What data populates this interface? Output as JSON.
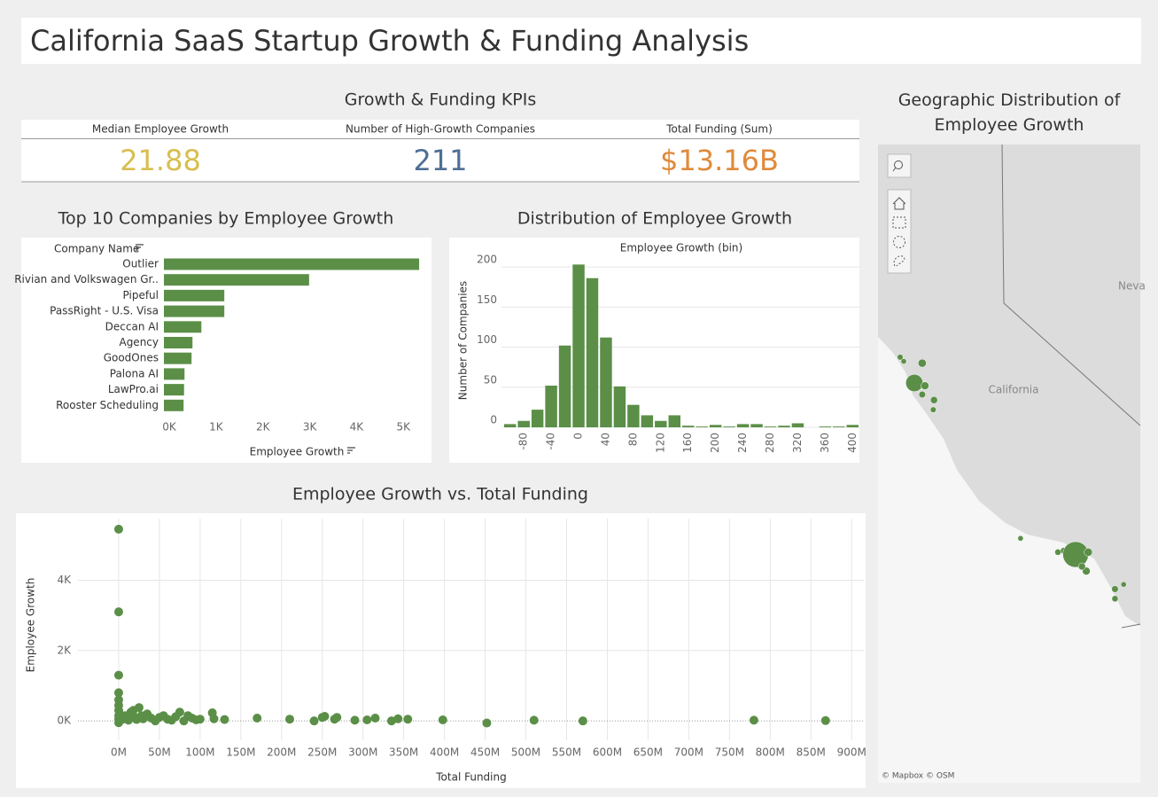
{
  "title": "California SaaS Startup Growth & Funding Analysis",
  "kpis": {
    "title": "Growth & Funding KPIs",
    "items": [
      {
        "label": "Median Employee Growth",
        "value": 21.88,
        "color": "#d8bf4e"
      },
      {
        "label": "Number of High-Growth Companies",
        "value": 211,
        "color": "#4e6f94"
      },
      {
        "label": "Total Funding (Sum)",
        "value": {
          "value": 13160000000,
          "label": "$13.16B"
        },
        "color": "#e08a3a"
      }
    ]
  },
  "chart_data": [
    {
      "type": "hbar",
      "title": "Top 10 Companies by Employee Growth",
      "y_label": "Company Name",
      "x_label": "Employee Growth",
      "color": "#5b8f47",
      "categories": [
        "Outlier",
        "Rivian and Volkswagen Gr..",
        "Pipeful",
        "PassRight - U.S. Visa",
        "Deccan AI",
        "Agency",
        "GoodOnes",
        "Palona AI",
        "LawPro.ai",
        "Rooster Scheduling"
      ],
      "values": [
        5450,
        3100,
        1290,
        1290,
        800,
        610,
        590,
        440,
        430,
        420
      ],
      "xlim": [
        0,
        5600
      ],
      "xticks": [
        {
          "value": 0,
          "label": "0K"
        },
        {
          "value": 1000,
          "label": "1K"
        },
        {
          "value": 2000,
          "label": "2K"
        },
        {
          "value": 3000,
          "label": "3K"
        },
        {
          "value": 4000,
          "label": "4K"
        },
        {
          "value": 5000,
          "label": "5K"
        }
      ]
    },
    {
      "type": "histogram",
      "title": "Distribution of Employee Growth",
      "x_label": "Employee Growth (bin)",
      "y_label": "Number of Companies",
      "color": "#5b8f47",
      "grid": true,
      "bins": [
        -100,
        -80,
        -60,
        -40,
        -20,
        0,
        20,
        40,
        60,
        80,
        100,
        120,
        140,
        160,
        180,
        200,
        220,
        240,
        260,
        280,
        300,
        320,
        340,
        360,
        380,
        400,
        420
      ],
      "values": [
        4,
        8,
        22,
        52,
        102,
        203,
        186,
        112,
        51,
        28,
        15,
        8,
        15,
        2,
        1,
        3,
        1,
        4,
        4,
        1,
        2,
        5,
        0,
        1,
        1,
        3
      ],
      "xlim": [
        -100,
        420
      ],
      "xticks": [
        -80,
        -40,
        0,
        40,
        80,
        120,
        160,
        200,
        240,
        280,
        320,
        360,
        400
      ],
      "ylim": [
        0,
        220
      ],
      "yticks": [
        0,
        50,
        100,
        150,
        200
      ]
    },
    {
      "type": "scatter",
      "title": "Employee Growth vs. Total Funding",
      "x_label": "Total Funding",
      "y_label": "Employee Growth",
      "color": "#5b8f47",
      "grid": true,
      "x": [
        0,
        0,
        0,
        0,
        0,
        0,
        0,
        0,
        0,
        0,
        1000000,
        2000000,
        5000000,
        8000000,
        10000000,
        12000000,
        15000000,
        18000000,
        20000000,
        22000000,
        25000000,
        28000000,
        30000000,
        35000000,
        40000000,
        45000000,
        50000000,
        55000000,
        60000000,
        65000000,
        70000000,
        75000000,
        80000000,
        85000000,
        90000000,
        95000000,
        100000000,
        115000000,
        117000000,
        130000000,
        170000000,
        210000000,
        240000000,
        250000000,
        253000000,
        265000000,
        268000000,
        290000000,
        305000000,
        315000000,
        335000000,
        343000000,
        355000000,
        398000000,
        452000000,
        510000000,
        570000000,
        780000000,
        868000000
      ],
      "values": [
        5450,
        3100,
        1300,
        800,
        600,
        440,
        300,
        150,
        50,
        -50,
        200,
        100,
        50,
        150,
        80,
        20,
        250,
        300,
        100,
        40,
        380,
        150,
        60,
        200,
        80,
        0,
        100,
        150,
        50,
        20,
        120,
        250,
        0,
        150,
        80,
        30,
        50,
        230,
        60,
        40,
        80,
        50,
        0,
        100,
        130,
        50,
        100,
        20,
        30,
        80,
        0,
        60,
        50,
        30,
        -60,
        20,
        0,
        20,
        10
      ],
      "xlim": [
        -50000000,
        915000000
      ],
      "xticks": [
        {
          "value": 0,
          "label": "0M"
        },
        {
          "value": 50000000,
          "label": "50M"
        },
        {
          "value": 100000000,
          "label": "100M"
        },
        {
          "value": 150000000,
          "label": "150M"
        },
        {
          "value": 200000000,
          "label": "200M"
        },
        {
          "value": 250000000,
          "label": "250M"
        },
        {
          "value": 300000000,
          "label": "300M"
        },
        {
          "value": 350000000,
          "label": "350M"
        },
        {
          "value": 400000000,
          "label": "400M"
        },
        {
          "value": 450000000,
          "label": "450M"
        },
        {
          "value": 500000000,
          "label": "500M"
        },
        {
          "value": 550000000,
          "label": "550M"
        },
        {
          "value": 600000000,
          "label": "600M"
        },
        {
          "value": 650000000,
          "label": "650M"
        },
        {
          "value": 700000000,
          "label": "700M"
        },
        {
          "value": 750000000,
          "label": "750M"
        },
        {
          "value": 800000000,
          "label": "800M"
        },
        {
          "value": 850000000,
          "label": "850M"
        },
        {
          "value": 900000000,
          "label": "900M"
        }
      ],
      "ylim": [
        -550,
        5750
      ],
      "yticks": [
        {
          "value": 0,
          "label": "0K"
        },
        {
          "value": 2000,
          "label": "2K"
        },
        {
          "value": 4000,
          "label": "4K"
        }
      ]
    },
    {
      "type": "map",
      "title": "Geographic Distribution of Employee Growth",
      "labels": [
        "California",
        "Neva"
      ],
      "attribution": "© Mapbox © OSM",
      "color": "#5b8f47",
      "x": [
        -122.4,
        -122.76,
        -122.67,
        -122.2,
        -122.13,
        -122.2,
        -121.9,
        -121.92,
        -119.7,
        -118.75,
        -118.6,
        -118.3,
        -117.98,
        -118.03,
        -118.14,
        -117.3,
        -117.08,
        -117.3
      ],
      "y": [
        37.77,
        38.33,
        38.24,
        38.2,
        37.71,
        37.52,
        37.4,
        37.19,
        34.4,
        34.1,
        34.13,
        34.05,
        34.1,
        33.69,
        33.79,
        33.3,
        33.4,
        33.09
      ],
      "sizes": [
        3200,
        150,
        120,
        450,
        400,
        250,
        300,
        150,
        120,
        200,
        250,
        8000,
        450,
        400,
        300,
        250,
        120,
        200
      ]
    }
  ]
}
